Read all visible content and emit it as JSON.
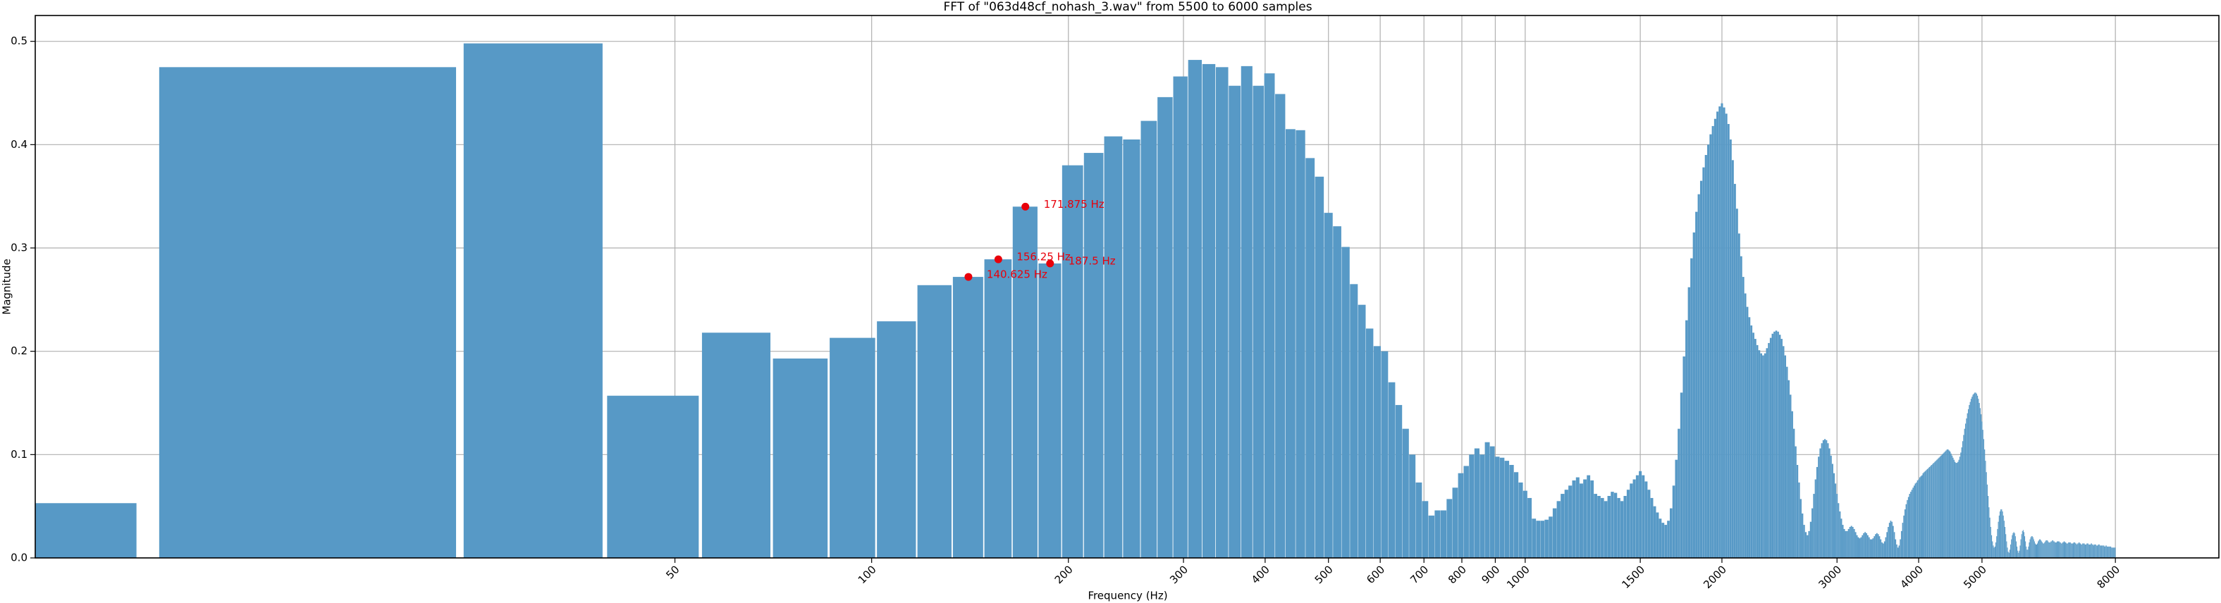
{
  "chart_data": {
    "type": "bar",
    "title": "FFT of \"063d48cf_nohash_3.wav\" from 5500 to 6000 samples",
    "x_label": "Frequency (Hz)",
    "y_label": "Magnitude",
    "color": "#5799c6",
    "x_scale": "log",
    "grid": true,
    "xlim": [
      5.25,
      11520
    ],
    "ylim": [
      0,
      0.525
    ],
    "xticks": [
      50,
      100,
      200,
      300,
      400,
      500,
      600,
      700,
      800,
      900,
      1000,
      1500,
      2000,
      3000,
      4000,
      5000,
      8000
    ],
    "yticks": [
      {
        "value": 0,
        "label": "0.0"
      },
      0.1,
      0.2,
      0.3,
      0.4,
      0.5
    ],
    "annotation_color": "#e8000b",
    "annotations": [
      {
        "x": 140.625,
        "y": 0.272,
        "text": "140.625 Hz"
      },
      {
        "x": 156.25,
        "y": 0.289,
        "text": "156.25 Hz"
      },
      {
        "x": 171.875,
        "y": 0.34,
        "text": "171.875 Hz"
      },
      {
        "x": 187.5,
        "y": 0.285,
        "text": "187.5 Hz"
      }
    ],
    "x": [
      0,
      15.625,
      31.25,
      46.875,
      62.5,
      78.125,
      93.75,
      109.375,
      125,
      140.625,
      156.25,
      171.875,
      187.5,
      203.125,
      218.75,
      234.375,
      250,
      265.625,
      281.25,
      296.875,
      312.5,
      328.125,
      343.75,
      359.375,
      375,
      390.625,
      406.25,
      421.875,
      437.5,
      453.125,
      468.75,
      484.375,
      500,
      515.625,
      531.25,
      546.875,
      562.5,
      578.125,
      593.75,
      609.375,
      625,
      640.625,
      656.25,
      671.875,
      687.5,
      703.125,
      718.75,
      734.375,
      750,
      765.625,
      781.25,
      796.875,
      812.5,
      828.125,
      843.75,
      859.375,
      875,
      890.625,
      906.25,
      921.875,
      937.5,
      953.125,
      968.75,
      984.375,
      1000,
      1015.625,
      1031.25,
      1046.875,
      1062.5,
      1078.125,
      1093.75,
      1109.375,
      1125,
      1140.625,
      1156.25,
      1171.875,
      1187.5,
      1203.125,
      1218.75,
      1234.375,
      1250,
      1265.625,
      1281.25,
      1296.875,
      1312.5,
      1328.125,
      1343.75,
      1359.375,
      1375,
      1390.625,
      1406.25,
      1421.875,
      1437.5,
      1453.125,
      1468.75,
      1484.375,
      1500,
      1515.625,
      1531.25,
      1546.875,
      1562.5,
      1578.125,
      1593.75,
      1609.375,
      1625,
      1640.625,
      1656.25,
      1671.875,
      1687.5,
      1703.125,
      1718.75,
      1734.375,
      1750,
      1765.625,
      1781.25,
      1796.875,
      1812.5,
      1828.125,
      1843.75,
      1859.375,
      1875,
      1890.625,
      1906.25,
      1921.875,
      1937.5,
      1953.125,
      1968.75,
      1984.375,
      2000,
      2015.625,
      2031.25,
      2046.875,
      2062.5,
      2078.125,
      2093.75,
      2109.375,
      2125,
      2140.625,
      2156.25,
      2171.875,
      2187.5,
      2203.125,
      2218.75,
      2234.375,
      2250,
      2265.625,
      2281.25,
      2296.875,
      2312.5,
      2328.125,
      2343.75,
      2359.375,
      2375,
      2390.625,
      2406.25,
      2421.875,
      2437.5,
      2453.125,
      2468.75,
      2484.375,
      2500,
      2515.625,
      2531.25,
      2546.875,
      2562.5,
      2578.125,
      2593.75,
      2609.375,
      2625,
      2640.625,
      2656.25,
      2671.875,
      2687.5,
      2703.125,
      2718.75,
      2734.375,
      2750,
      2765.625,
      2781.25,
      2796.875,
      2812.5,
      2828.125,
      2843.75,
      2859.375,
      2875,
      2890.625,
      2906.25,
      2921.875,
      2937.5,
      2953.125,
      2968.75,
      2984.375,
      3000,
      3015.625,
      3031.25,
      3046.875,
      3062.5,
      3078.125,
      3093.75,
      3109.375,
      3125,
      3140.625,
      3156.25,
      3171.875,
      3187.5,
      3203.125,
      3218.75,
      3234.375,
      3250,
      3265.625,
      3281.25,
      3296.875,
      3312.5,
      3328.125,
      3343.75,
      3359.375,
      3375,
      3390.625,
      3406.25,
      3421.875,
      3437.5,
      3453.125,
      3468.75,
      3484.375,
      3500,
      3515.625,
      3531.25,
      3546.875,
      3562.5,
      3578.125,
      3593.75,
      3609.375,
      3625,
      3640.625,
      3656.25,
      3671.875,
      3687.5,
      3703.125,
      3718.75,
      3734.375,
      3750,
      3765.625,
      3781.25,
      3796.875,
      3812.5,
      3828.125,
      3843.75,
      3859.375,
      3875,
      3890.625,
      3906.25,
      3921.875,
      3937.5,
      3953.125,
      3968.75,
      3984.375,
      4000,
      4015.625,
      4031.25,
      4046.875,
      4062.5,
      4078.125,
      4093.75,
      4109.375,
      4125,
      4140.625,
      4156.25,
      4171.875,
      4187.5,
      4203.125,
      4218.75,
      4234.375,
      4250,
      4265.625,
      4281.25,
      4296.875,
      4312.5,
      4328.125,
      4343.75,
      4359.375,
      4375,
      4390.625,
      4406.25,
      4421.875,
      4437.5,
      4453.125,
      4468.75,
      4484.375,
      4500,
      4515.625,
      4531.25,
      4546.875,
      4562.5,
      4578.125,
      4593.75,
      4609.375,
      4625,
      4640.625,
      4656.25,
      4671.875,
      4687.5,
      4703.125,
      4718.75,
      4734.375,
      4750,
      4765.625,
      4781.25,
      4796.875,
      4812.5,
      4828.125,
      4843.75,
      4859.375,
      4875,
      4890.625,
      4906.25,
      4921.875,
      4937.5,
      4953.125,
      4968.75,
      4984.375,
      5000,
      5015.625,
      5031.25,
      5046.875,
      5062.5,
      5078.125,
      5093.75,
      5109.375,
      5125,
      5140.625,
      5156.25,
      5171.875,
      5187.5,
      5203.125,
      5218.75,
      5234.375,
      5250,
      5265.625,
      5281.25,
      5296.875,
      5312.5,
      5328.125,
      5343.75,
      5359.375,
      5375,
      5390.625,
      5406.25,
      5421.875,
      5437.5,
      5453.125,
      5468.75,
      5484.375,
      5500,
      5515.625,
      5531.25,
      5546.875,
      5562.5,
      5578.125,
      5593.75,
      5609.375,
      5625,
      5640.625,
      5656.25,
      5671.875,
      5687.5,
      5703.125,
      5718.75,
      5734.375,
      5750,
      5765.625,
      5781.25,
      5796.875,
      5812.5,
      5828.125,
      5843.75,
      5859.375,
      5875,
      5890.625,
      5906.25,
      5921.875,
      5937.5,
      5953.125,
      5968.75,
      5984.375,
      6000,
      6015.625,
      6031.25,
      6046.875,
      6062.5,
      6078.125,
      6093.75,
      6109.375,
      6125,
      6140.625,
      6156.25,
      6171.875,
      6187.5,
      6203.125,
      6218.75,
      6234.375,
      6250,
      6265.625,
      6281.25,
      6296.875,
      6312.5,
      6328.125,
      6343.75,
      6359.375,
      6375,
      6390.625,
      6406.25,
      6421.875,
      6437.5,
      6453.125,
      6468.75,
      6484.375,
      6500,
      6515.625,
      6531.25,
      6546.875,
      6562.5,
      6578.125,
      6593.75,
      6609.375,
      6625,
      6640.625,
      6656.25,
      6671.875,
      6687.5,
      6703.125,
      6718.75,
      6734.375,
      6750,
      6765.625,
      6781.25,
      6796.875,
      6812.5,
      6828.125,
      6843.75,
      6859.375,
      6875,
      6890.625,
      6906.25,
      6921.875,
      6937.5,
      6953.125,
      6968.75,
      6984.375,
      7000,
      7015.625,
      7031.25,
      7046.875,
      7062.5,
      7078.125,
      7093.75,
      7109.375,
      7125,
      7140.625,
      7156.25,
      7171.875,
      7187.5,
      7203.125,
      7218.75,
      7234.375,
      7250,
      7265.625,
      7281.25,
      7296.875,
      7312.5,
      7328.125,
      7343.75,
      7359.375,
      7375,
      7390.625,
      7406.25,
      7421.875,
      7437.5,
      7453.125,
      7468.75,
      7484.375,
      7500,
      7515.625,
      7531.25,
      7546.875,
      7562.5,
      7578.125,
      7593.75,
      7609.375,
      7625,
      7640.625,
      7656.25,
      7671.875,
      7687.5,
      7703.125,
      7718.75,
      7734.375,
      7750,
      7765.625,
      7781.25,
      7796.875,
      7812.5,
      7828.125,
      7843.75,
      7859.375,
      7875,
      7890.625,
      7906.25,
      7921.875,
      7937.5,
      7953.125,
      7968.75,
      7984.375,
      8000
    ],
    "values": [
      0.053,
      0.475,
      0.498,
      0.157,
      0.218,
      0.193,
      0.213,
      0.229,
      0.264,
      0.272,
      0.289,
      0.34,
      0.285,
      0.38,
      0.392,
      0.408,
      0.405,
      0.423,
      0.446,
      0.466,
      0.482,
      0.478,
      0.475,
      0.457,
      0.476,
      0.457,
      0.469,
      0.449,
      0.415,
      0.414,
      0.387,
      0.369,
      0.334,
      0.321,
      0.301,
      0.265,
      0.245,
      0.222,
      0.205,
      0.2,
      0.17,
      0.148,
      0.125,
      0.1,
      0.073,
      0.055,
      0.041,
      0.046,
      0.046,
      0.057,
      0.068,
      0.082,
      0.089,
      0.1,
      0.106,
      0.1,
      0.112,
      0.108,
      0.098,
      0.097,
      0.094,
      0.09,
      0.083,
      0.073,
      0.065,
      0.058,
      0.038,
      0.036,
      0.036,
      0.037,
      0.04,
      0.048,
      0.055,
      0.062,
      0.066,
      0.07,
      0.075,
      0.078,
      0.072,
      0.076,
      0.08,
      0.075,
      0.062,
      0.06,
      0.058,
      0.055,
      0.06,
      0.064,
      0.063,
      0.058,
      0.055,
      0.06,
      0.066,
      0.072,
      0.076,
      0.08,
      0.084,
      0.08,
      0.074,
      0.066,
      0.058,
      0.05,
      0.044,
      0.038,
      0.034,
      0.032,
      0.036,
      0.048,
      0.07,
      0.095,
      0.125,
      0.16,
      0.195,
      0.23,
      0.262,
      0.29,
      0.315,
      0.335,
      0.352,
      0.365,
      0.378,
      0.39,
      0.4,
      0.41,
      0.418,
      0.425,
      0.432,
      0.437,
      0.44,
      0.436,
      0.43,
      0.42,
      0.405,
      0.385,
      0.362,
      0.338,
      0.314,
      0.292,
      0.272,
      0.256,
      0.243,
      0.233,
      0.225,
      0.218,
      0.212,
      0.206,
      0.201,
      0.198,
      0.196,
      0.198,
      0.203,
      0.208,
      0.213,
      0.217,
      0.219,
      0.22,
      0.219,
      0.216,
      0.212,
      0.205,
      0.196,
      0.185,
      0.172,
      0.158,
      0.142,
      0.125,
      0.108,
      0.09,
      0.073,
      0.057,
      0.043,
      0.032,
      0.025,
      0.022,
      0.026,
      0.035,
      0.048,
      0.062,
      0.076,
      0.088,
      0.098,
      0.106,
      0.111,
      0.114,
      0.115,
      0.114,
      0.111,
      0.106,
      0.099,
      0.091,
      0.082,
      0.072,
      0.062,
      0.053,
      0.045,
      0.038,
      0.032,
      0.028,
      0.026,
      0.026,
      0.028,
      0.03,
      0.031,
      0.03,
      0.028,
      0.025,
      0.022,
      0.02,
      0.019,
      0.02,
      0.022,
      0.024,
      0.025,
      0.024,
      0.022,
      0.02,
      0.018,
      0.018,
      0.019,
      0.021,
      0.023,
      0.024,
      0.023,
      0.021,
      0.018,
      0.015,
      0.014,
      0.016,
      0.02,
      0.025,
      0.03,
      0.034,
      0.036,
      0.035,
      0.031,
      0.025,
      0.018,
      0.013,
      0.01,
      0.012,
      0.018,
      0.026,
      0.034,
      0.041,
      0.047,
      0.052,
      0.056,
      0.059,
      0.062,
      0.064,
      0.066,
      0.068,
      0.07,
      0.072,
      0.073,
      0.075,
      0.076,
      0.078,
      0.079,
      0.08,
      0.082,
      0.083,
      0.084,
      0.085,
      0.086,
      0.087,
      0.088,
      0.089,
      0.09,
      0.091,
      0.092,
      0.093,
      0.094,
      0.095,
      0.096,
      0.097,
      0.098,
      0.099,
      0.1,
      0.101,
      0.102,
      0.103,
      0.104,
      0.105,
      0.105,
      0.104,
      0.103,
      0.101,
      0.099,
      0.097,
      0.095,
      0.093,
      0.092,
      0.092,
      0.093,
      0.095,
      0.098,
      0.102,
      0.107,
      0.113,
      0.119,
      0.125,
      0.13,
      0.135,
      0.14,
      0.144,
      0.148,
      0.151,
      0.154,
      0.156,
      0.158,
      0.159,
      0.16,
      0.16,
      0.159,
      0.157,
      0.154,
      0.15,
      0.145,
      0.139,
      0.132,
      0.124,
      0.115,
      0.105,
      0.094,
      0.083,
      0.071,
      0.06,
      0.049,
      0.039,
      0.03,
      0.022,
      0.016,
      0.012,
      0.01,
      0.011,
      0.015,
      0.021,
      0.028,
      0.035,
      0.041,
      0.045,
      0.047,
      0.047,
      0.045,
      0.041,
      0.036,
      0.03,
      0.023,
      0.016,
      0.01,
      0.006,
      0.005,
      0.008,
      0.013,
      0.018,
      0.022,
      0.024,
      0.025,
      0.024,
      0.021,
      0.016,
      0.011,
      0.007,
      0.005,
      0.007,
      0.012,
      0.018,
      0.023,
      0.026,
      0.027,
      0.025,
      0.021,
      0.016,
      0.011,
      0.008,
      0.008,
      0.011,
      0.015,
      0.018,
      0.02,
      0.021,
      0.021,
      0.02,
      0.018,
      0.016,
      0.014,
      0.013,
      0.013,
      0.014,
      0.016,
      0.017,
      0.018,
      0.018,
      0.017,
      0.016,
      0.015,
      0.014,
      0.014,
      0.015,
      0.016,
      0.017,
      0.017,
      0.017,
      0.016,
      0.015,
      0.015,
      0.015,
      0.016,
      0.016,
      0.017,
      0.017,
      0.016,
      0.016,
      0.015,
      0.015,
      0.015,
      0.016,
      0.016,
      0.016,
      0.016,
      0.015,
      0.015,
      0.014,
      0.014,
      0.015,
      0.015,
      0.016,
      0.016,
      0.015,
      0.015,
      0.014,
      0.014,
      0.014,
      0.015,
      0.015,
      0.015,
      0.015,
      0.014,
      0.014,
      0.014,
      0.014,
      0.015,
      0.015,
      0.015,
      0.014,
      0.014,
      0.013,
      0.014,
      0.014,
      0.015,
      0.015,
      0.014,
      0.014,
      0.013,
      0.013,
      0.014,
      0.014,
      0.014,
      0.014,
      0.013,
      0.013,
      0.013,
      0.014,
      0.014,
      0.014,
      0.013,
      0.013,
      0.013,
      0.013,
      0.014,
      0.014,
      0.013,
      0.013,
      0.012,
      0.013,
      0.013,
      0.013,
      0.013,
      0.012,
      0.012,
      0.012,
      0.013,
      0.013,
      0.013,
      0.012,
      0.012,
      0.012,
      0.012,
      0.012,
      0.012,
      0.012,
      0.012,
      0.011,
      0.011,
      0.012,
      0.012,
      0.011,
      0.011,
      0.011,
      0.011,
      0.011,
      0.011,
      0.011,
      0.011,
      0.01,
      0.01,
      0.01,
      0.01,
      0.01,
      0.01,
      0.01,
      0.01
    ]
  }
}
